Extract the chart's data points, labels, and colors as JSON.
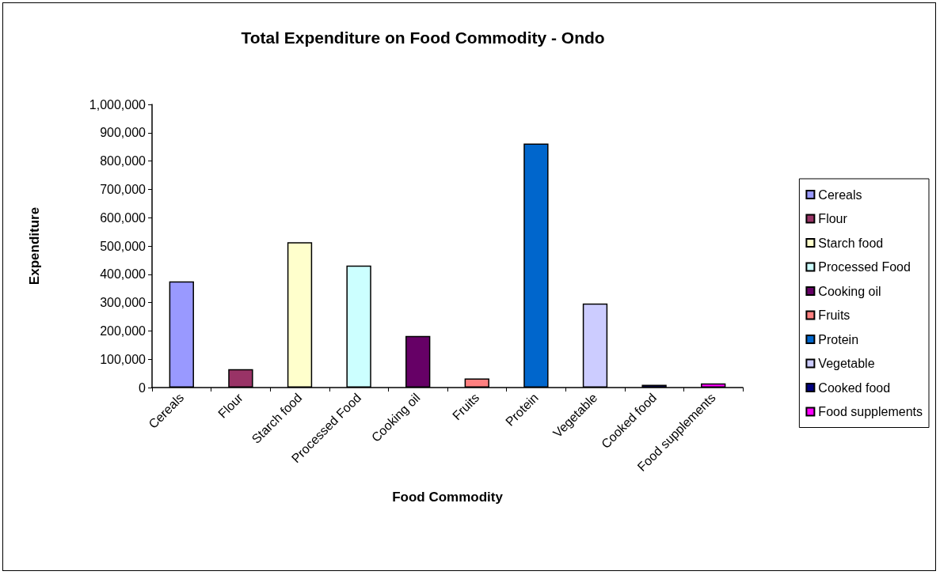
{
  "chart_data": {
    "type": "bar",
    "title": "Total Expenditure on Food Commodity - Ondo",
    "xlabel": "Food Commodity",
    "ylabel": "Expenditure",
    "categories": [
      "Cereals",
      "Flour",
      "Starch food",
      "Processed Food",
      "Cooking oil",
      "Fruits",
      "Protein",
      "Vegetable",
      "Cooked food",
      "Food supplements"
    ],
    "series": [
      {
        "name": "Cereals",
        "color": "#9999ff",
        "values": [
          375000,
          null,
          null,
          null,
          null,
          null,
          null,
          null,
          null,
          null
        ]
      },
      {
        "name": "Flour",
        "color": "#993366",
        "values": [
          null,
          65000,
          null,
          null,
          null,
          null,
          null,
          null,
          null,
          null
        ]
      },
      {
        "name": "Starch food",
        "color": "#ffffcc",
        "values": [
          null,
          null,
          513000,
          null,
          null,
          null,
          null,
          null,
          null,
          null
        ]
      },
      {
        "name": "Processed Food",
        "color": "#ccffff",
        "values": [
          null,
          null,
          null,
          431000,
          null,
          null,
          null,
          null,
          null,
          null
        ]
      },
      {
        "name": "Cooking oil",
        "color": "#660066",
        "values": [
          null,
          null,
          null,
          null,
          182000,
          null,
          null,
          null,
          null,
          null
        ]
      },
      {
        "name": "Fruits",
        "color": "#ff8080",
        "values": [
          null,
          null,
          null,
          null,
          null,
          32000,
          null,
          null,
          null,
          null
        ]
      },
      {
        "name": "Protein",
        "color": "#0066cc",
        "values": [
          null,
          null,
          null,
          null,
          null,
          null,
          862000,
          null,
          null,
          null
        ]
      },
      {
        "name": "Vegetable",
        "color": "#ccccff",
        "values": [
          null,
          null,
          null,
          null,
          null,
          null,
          null,
          297000,
          null,
          null
        ]
      },
      {
        "name": "Cooked food",
        "color": "#000080",
        "values": [
          null,
          null,
          null,
          null,
          null,
          null,
          null,
          null,
          10000,
          null
        ]
      },
      {
        "name": "Food supplements",
        "color": "#ff00ff",
        "values": [
          null,
          null,
          null,
          null,
          null,
          null,
          null,
          null,
          null,
          15000
        ]
      }
    ],
    "ylim": [
      0,
      1000000
    ],
    "yticks": [
      {
        "value": 0,
        "label": "0"
      },
      {
        "value": 100000,
        "label": "100,000"
      },
      {
        "value": 200000,
        "label": "200,000"
      },
      {
        "value": 300000,
        "label": "300,000"
      },
      {
        "value": 400000,
        "label": "400,000"
      },
      {
        "value": 500000,
        "label": "500,000"
      },
      {
        "value": 600000,
        "label": "600,000"
      },
      {
        "value": 700000,
        "label": "700,000"
      },
      {
        "value": 800000,
        "label": "800,000"
      },
      {
        "value": 900000,
        "label": "900,000"
      },
      {
        "value": 1000000,
        "label": "1,000,000"
      }
    ],
    "grid": false,
    "legend": "right"
  }
}
